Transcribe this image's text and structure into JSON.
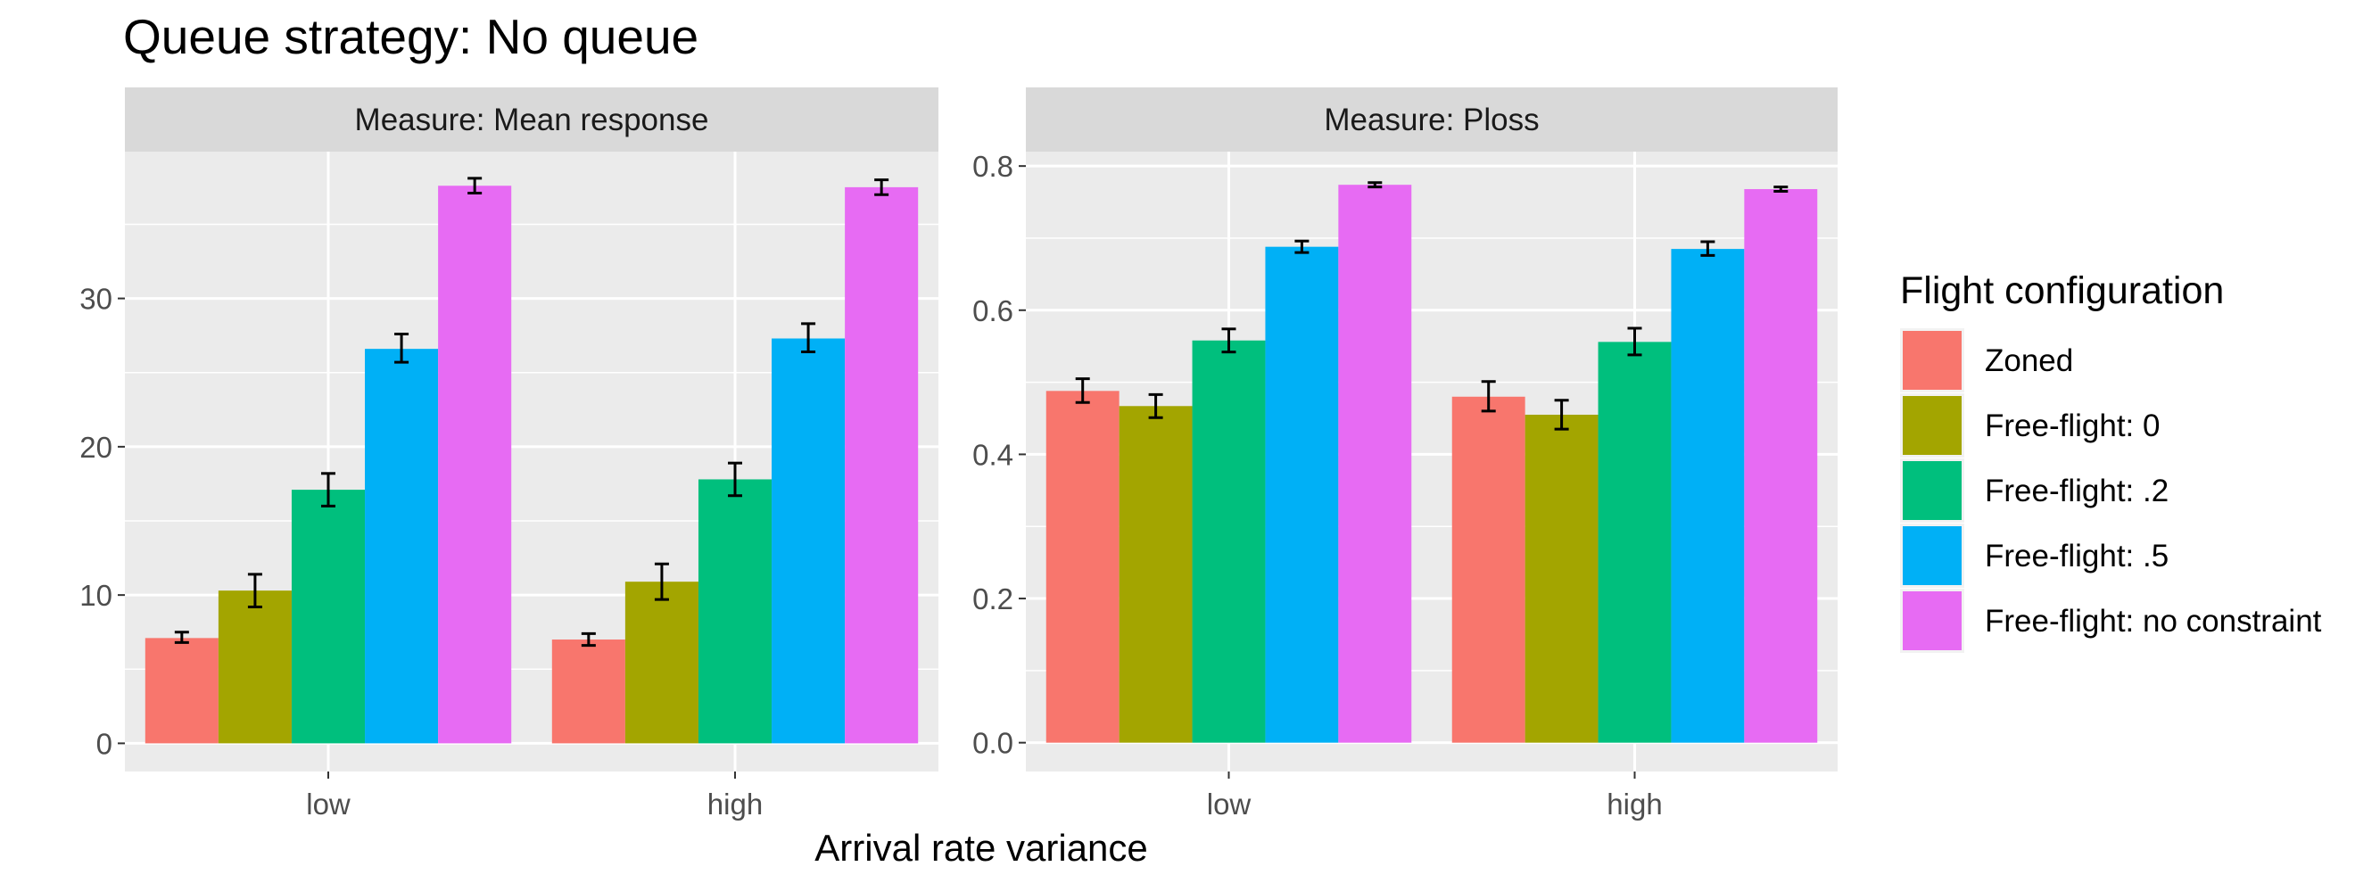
{
  "title": "Queue strategy: No queue",
  "xlabel": "Arrival rate variance",
  "legend": {
    "title": "Flight configuration",
    "position": "right"
  },
  "chart_data": {
    "type": "bar",
    "categories": [
      "low",
      "high"
    ],
    "series": [
      {
        "name": "Zoned",
        "color": "#F8766D"
      },
      {
        "name": "Free-flight: 0",
        "color": "#A3A500"
      },
      {
        "name": "Free-flight: .2",
        "color": "#00BF7D"
      },
      {
        "name": "Free-flight: .5",
        "color": "#00B0F6"
      },
      {
        "name": "Free-flight: no constraint",
        "color": "#E76BF3"
      }
    ],
    "panels": [
      {
        "strip": "Measure: Mean response",
        "ylim": [
          -1.9,
          39.9
        ],
        "y_ticks": [
          0,
          10,
          20,
          30
        ],
        "y_tick_labels": [
          "0",
          "10",
          "20",
          "30"
        ],
        "values": [
          [
            7.1,
            10.3,
            17.1,
            26.6,
            37.6
          ],
          [
            7.0,
            10.9,
            17.8,
            27.3,
            37.5
          ]
        ],
        "error": [
          [
            [
              6.8,
              7.5
            ],
            [
              9.2,
              11.4
            ],
            [
              16.0,
              18.2
            ],
            [
              25.7,
              27.6
            ],
            [
              37.1,
              38.1
            ]
          ],
          [
            [
              6.6,
              7.4
            ],
            [
              9.7,
              12.1
            ],
            [
              16.7,
              18.9
            ],
            [
              26.4,
              28.3
            ],
            [
              37.0,
              38.0
            ]
          ]
        ]
      },
      {
        "strip": "Measure: Ploss",
        "ylim": [
          -0.04,
          0.82
        ],
        "y_ticks": [
          0,
          0.2,
          0.4,
          0.6,
          0.8
        ],
        "y_tick_labels": [
          "0.0",
          "0.2",
          "0.4",
          "0.6",
          "0.8"
        ],
        "values": [
          [
            0.488,
            0.467,
            0.558,
            0.688,
            0.774
          ],
          [
            0.48,
            0.455,
            0.556,
            0.685,
            0.768
          ]
        ],
        "error": [
          [
            [
              0.472,
              0.505
            ],
            [
              0.451,
              0.483
            ],
            [
              0.542,
              0.574
            ],
            [
              0.68,
              0.696
            ],
            [
              0.771,
              0.777
            ]
          ],
          [
            [
              0.46,
              0.501
            ],
            [
              0.435,
              0.475
            ],
            [
              0.538,
              0.575
            ],
            [
              0.676,
              0.695
            ],
            [
              0.765,
              0.771
            ]
          ]
        ]
      }
    ],
    "grid": true
  }
}
